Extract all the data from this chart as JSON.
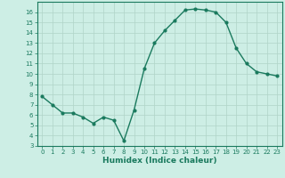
{
  "xlabel": "Humidex (Indice chaleur)",
  "x": [
    0,
    1,
    2,
    3,
    4,
    5,
    6,
    7,
    8,
    9,
    10,
    11,
    12,
    13,
    14,
    15,
    16,
    17,
    18,
    19,
    20,
    21,
    22,
    23
  ],
  "y": [
    7.8,
    7.0,
    6.2,
    6.2,
    5.8,
    5.2,
    5.8,
    5.5,
    3.5,
    6.5,
    10.5,
    13.0,
    14.2,
    15.2,
    16.2,
    16.3,
    16.2,
    16.0,
    15.0,
    12.5,
    11.0,
    10.2,
    10.0,
    9.8
  ],
  "line_color": "#1a7a5e",
  "marker": "o",
  "marker_size": 2.0,
  "line_width": 1.0,
  "background_color": "#cdeee5",
  "grid_color": "#b0d4c8",
  "ylim": [
    3,
    17
  ],
  "xlim": [
    -0.5,
    23.5
  ],
  "yticks": [
    3,
    4,
    5,
    6,
    7,
    8,
    9,
    10,
    11,
    12,
    13,
    14,
    15,
    16
  ],
  "xticks": [
    0,
    1,
    2,
    3,
    4,
    5,
    6,
    7,
    8,
    9,
    10,
    11,
    12,
    13,
    14,
    15,
    16,
    17,
    18,
    19,
    20,
    21,
    22,
    23
  ],
  "tick_fontsize": 5.0,
  "xlabel_fontsize": 6.5,
  "axis_color": "#1a7a5e"
}
